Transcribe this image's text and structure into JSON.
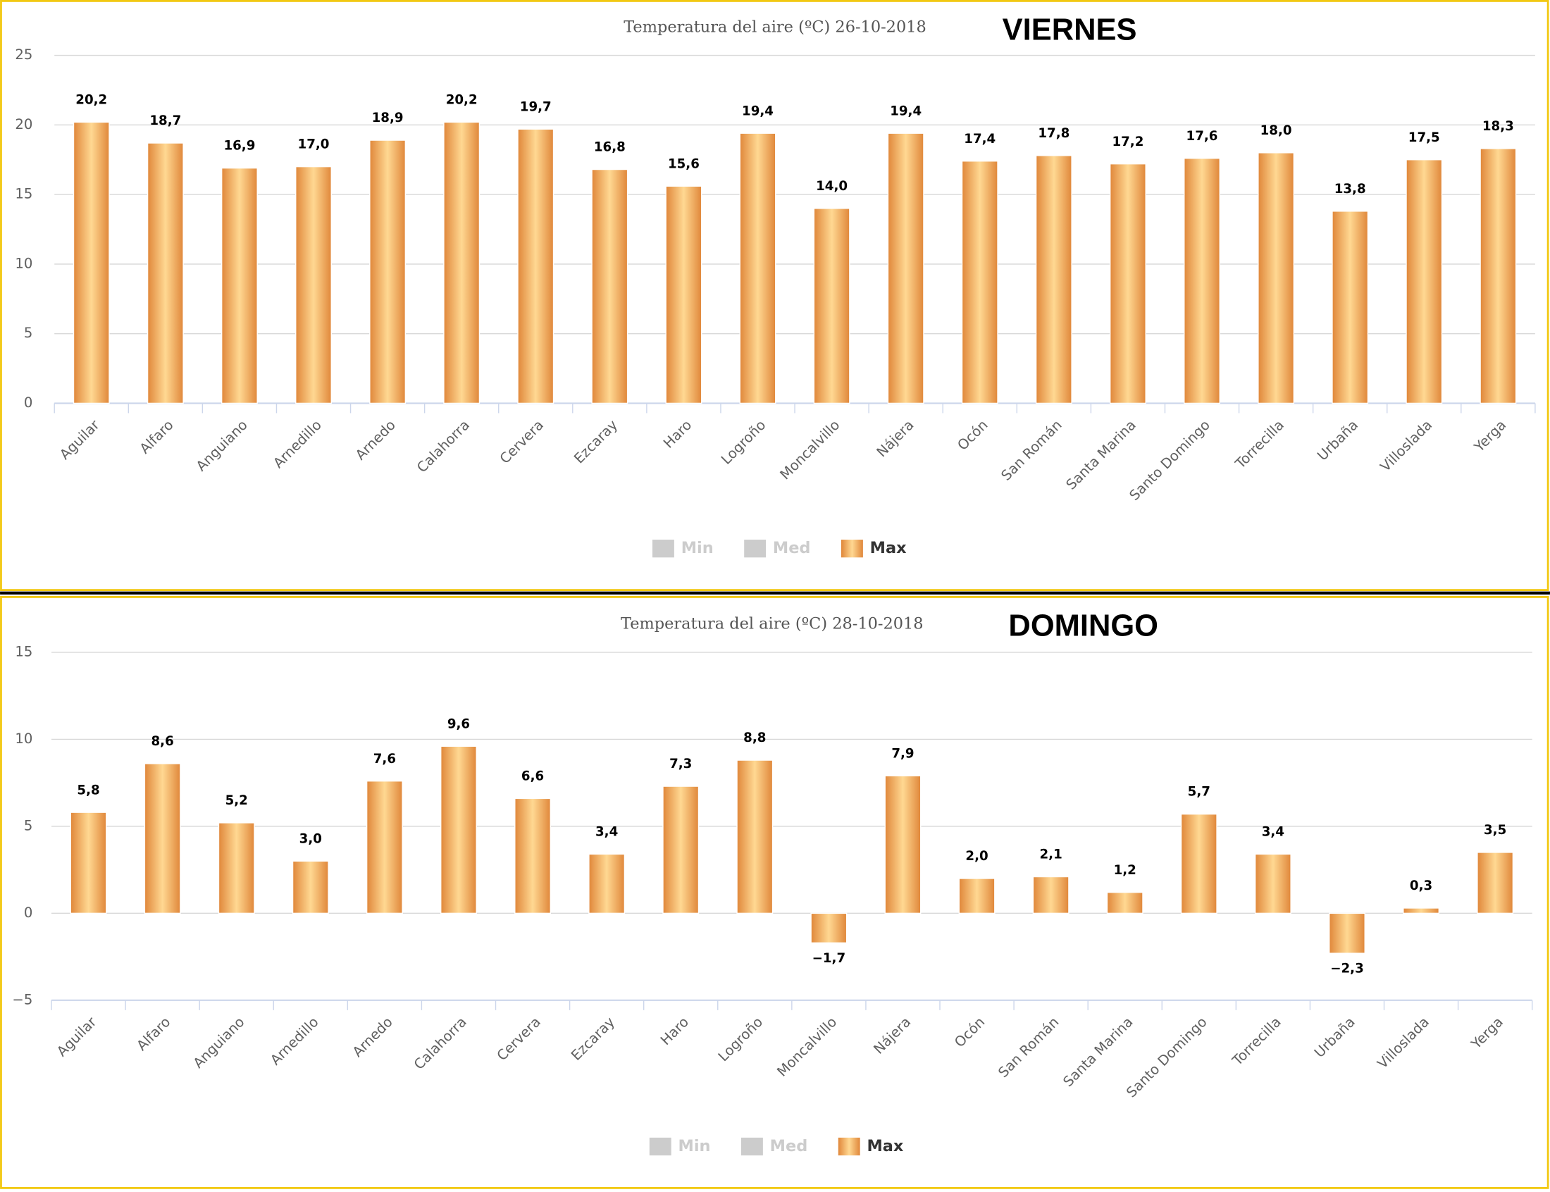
{
  "chart_data": [
    {
      "type": "bar",
      "title": "Temperatura del aire (ºC) 26-10-2018",
      "day": "VIERNES",
      "categories": [
        "Aguilar",
        "Alfaro",
        "Anguiano",
        "Arnedillo",
        "Arnedo",
        "Calahorra",
        "Cervera",
        "Ezcaray",
        "Haro",
        "Logroño",
        "Moncalvillo",
        "Nájera",
        "Ocón",
        "San Román",
        "Santa Marina",
        "Santo Domingo",
        "Torrecilla",
        "Urbaña",
        "Villoslada",
        "Yerga"
      ],
      "hidden_series": [
        {
          "name": "Min",
          "color": "#cccccc"
        },
        {
          "name": "Med",
          "color": "#cccccc"
        }
      ],
      "series": [
        {
          "name": "Max",
          "color": "#e0873a",
          "values": [
            20.2,
            18.7,
            16.9,
            17.0,
            18.9,
            20.2,
            19.7,
            16.8,
            15.6,
            19.4,
            14.0,
            19.4,
            17.4,
            17.8,
            17.2,
            17.6,
            18.0,
            13.8,
            17.5,
            18.3
          ],
          "value_labels": [
            "20,2",
            "18,7",
            "16,9",
            "17,0",
            "18,9",
            "20,2",
            "19,7",
            "16,8",
            "15,6",
            "19,4",
            "14,0",
            "19,4",
            "17,4",
            "17,8",
            "17,2",
            "17,6",
            "18,0",
            "13,8",
            "17,5",
            "18,3"
          ]
        }
      ],
      "ylim": [
        0,
        25
      ],
      "yticks": [
        0,
        5,
        10,
        15,
        20,
        25
      ],
      "grid": true
    },
    {
      "type": "bar",
      "title": "Temperatura del aire (ºC) 28-10-2018",
      "day": "DOMINGO",
      "categories": [
        "Aguilar",
        "Alfaro",
        "Anguiano",
        "Arnedillo",
        "Arnedo",
        "Calahorra",
        "Cervera",
        "Ezcaray",
        "Haro",
        "Logroño",
        "Moncalvillo",
        "Nájera",
        "Ocón",
        "San Román",
        "Santa Marina",
        "Santo Domingo",
        "Torrecilla",
        "Urbaña",
        "Villoslada",
        "Yerga"
      ],
      "hidden_series": [
        {
          "name": "Min",
          "color": "#cccccc"
        },
        {
          "name": "Med",
          "color": "#cccccc"
        }
      ],
      "series": [
        {
          "name": "Max",
          "color": "#e0873a",
          "values": [
            5.8,
            8.6,
            5.2,
            3.0,
            7.6,
            9.6,
            6.6,
            3.4,
            7.3,
            8.8,
            -1.7,
            7.9,
            2.0,
            2.1,
            1.2,
            5.7,
            3.4,
            -2.3,
            0.3,
            3.5
          ],
          "value_labels": [
            "5,8",
            "8,6",
            "5,2",
            "3,0",
            "7,6",
            "9,6",
            "6,6",
            "3,4",
            "7,3",
            "8,8",
            "−1,7",
            "7,9",
            "2,0",
            "2,1",
            "1,2",
            "5,7",
            "3,4",
            "−2,3",
            "0,3",
            "3,5"
          ]
        }
      ],
      "ylim": [
        -5,
        15
      ],
      "yticks": [
        {
          "value": -5,
          "label": "−5"
        },
        0,
        5,
        10,
        15
      ],
      "grid": true
    }
  ]
}
